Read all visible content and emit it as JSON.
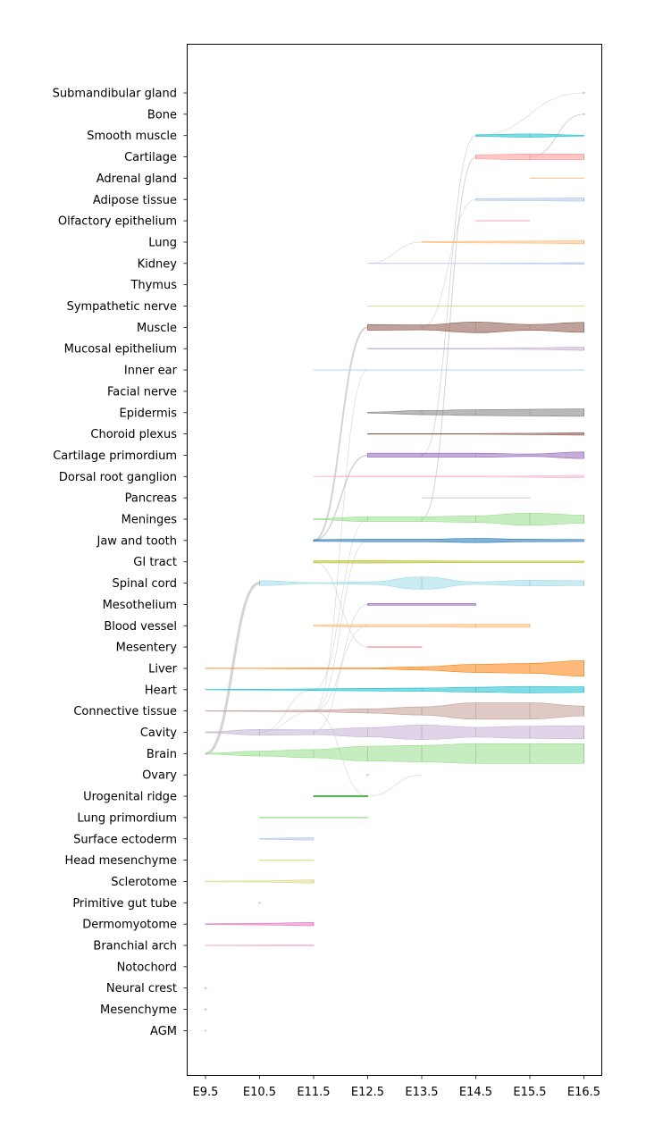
{
  "chart_data": {
    "type": "area",
    "x": [
      "E9.5",
      "E10.5",
      "E11.5",
      "E12.5",
      "E13.5",
      "E14.5",
      "E15.5",
      "E16.5"
    ],
    "categories": [
      "Submandibular gland",
      "Bone",
      "Smooth muscle",
      "Cartilage",
      "Adrenal gland",
      "Adipose tissue",
      "Olfactory epithelium",
      "Lung",
      "Kidney",
      "Thymus",
      "Sympathetic nerve",
      "Muscle",
      "Mucosal epithelium",
      "Inner ear",
      "Facial nerve",
      "Epidermis",
      "Choroid plexus",
      "Cartilage primordium",
      "Dorsal root ganglion",
      "Pancreas",
      "Meninges",
      "Jaw and tooth",
      "GI tract",
      "Spinal cord",
      "Mesothelium",
      "Blood vessel",
      "Mesentery",
      "Liver",
      "Heart",
      "Connective tissue",
      "Cavity",
      "Brain",
      "Ovary",
      "Urogenital ridge",
      "Lung primordium",
      "Surface ectoderm",
      "Head mesenchyme",
      "Sclerotome",
      "Primitive gut tube",
      "Dermomyotome",
      "Branchial arch",
      "Notochord",
      "Neural crest",
      "Mesenchyme",
      "AGM"
    ],
    "series": [
      {
        "category": "Submandibular gland",
        "color": "#c7c7c7",
        "values": [
          0,
          0,
          0,
          0,
          0,
          0,
          0,
          0.02
        ]
      },
      {
        "category": "Bone",
        "color": "#c7c7c7",
        "values": [
          0,
          0,
          0,
          0,
          0,
          0,
          0,
          0.02
        ]
      },
      {
        "category": "Smooth muscle",
        "color": "#17becf",
        "values": [
          0,
          0,
          0,
          0,
          0,
          0.1,
          0.2,
          0.05
        ]
      },
      {
        "category": "Cartilage",
        "color": "#ff9896",
        "values": [
          0,
          0,
          0,
          0,
          0,
          0.25,
          0.35,
          0.35
        ]
      },
      {
        "category": "Adrenal gland",
        "color": "#ffbb78",
        "values": [
          0,
          0,
          0,
          0,
          0,
          0,
          0.02,
          0.02
        ]
      },
      {
        "category": "Adipose tissue",
        "color": "#aec7e8",
        "values": [
          0,
          0,
          0,
          0,
          0,
          0.1,
          0.15,
          0.2
        ]
      },
      {
        "category": "Olfactory epithelium",
        "color": "#f7b6d2",
        "values": [
          0,
          0,
          0,
          0,
          0,
          0.04,
          0.04,
          0
        ]
      },
      {
        "category": "Lung",
        "color": "#ffbb78",
        "values": [
          0,
          0,
          0,
          0,
          0.06,
          0.1,
          0.12,
          0.2
        ]
      },
      {
        "category": "Kidney",
        "color": "#aec7e8",
        "values": [
          0,
          0,
          0,
          0.02,
          0.02,
          0.02,
          0.05,
          0.1
        ]
      },
      {
        "category": "Thymus",
        "color": "#c7c7c7",
        "values": [
          0,
          0,
          0,
          0,
          0,
          0,
          0,
          0
        ]
      },
      {
        "category": "Sympathetic nerve",
        "color": "#dbdb8d",
        "values": [
          0,
          0,
          0,
          0.04,
          0.04,
          0.04,
          0.04,
          0.04
        ]
      },
      {
        "category": "Muscle",
        "color": "#8c564b",
        "values": [
          0,
          0,
          0,
          0.35,
          0.3,
          0.65,
          0.35,
          0.6
        ]
      },
      {
        "category": "Mucosal epithelium",
        "color": "#c5b0d5",
        "values": [
          0,
          0,
          0,
          0.05,
          0.05,
          0.05,
          0.1,
          0.2
        ]
      },
      {
        "category": "Inner ear",
        "color": "#9edae5",
        "values": [
          0,
          0,
          0.02,
          0.02,
          0.02,
          0.02,
          0.02,
          0.02
        ]
      },
      {
        "category": "Facial nerve",
        "color": "#c7c7c7",
        "values": [
          0,
          0,
          0,
          0,
          0,
          0,
          0,
          0
        ]
      },
      {
        "category": "Epidermis",
        "color": "#7f7f7f",
        "values": [
          0,
          0,
          0,
          0.05,
          0.25,
          0.35,
          0.4,
          0.45
        ]
      },
      {
        "category": "Choroid plexus",
        "color": "#8c564b",
        "values": [
          0,
          0,
          0,
          0.03,
          0.03,
          0.03,
          0.08,
          0.15
        ]
      },
      {
        "category": "Cartilage primordium",
        "color": "#9467bd",
        "values": [
          0,
          0,
          0,
          0.25,
          0.25,
          0.25,
          0.15,
          0.4
        ]
      },
      {
        "category": "Dorsal root ganglion",
        "color": "#f7b6d2",
        "values": [
          0,
          0,
          0.02,
          0.05,
          0.05,
          0.05,
          0.1,
          0.15
        ]
      },
      {
        "category": "Pancreas",
        "color": "#c7c7c7",
        "values": [
          0,
          0,
          0,
          0,
          0.02,
          0.02,
          0.02,
          0
        ]
      },
      {
        "category": "Meninges",
        "color": "#98df8a",
        "values": [
          0,
          0,
          0.05,
          0.3,
          0.3,
          0.4,
          0.75,
          0.5
        ]
      },
      {
        "category": "Jaw and tooth",
        "color": "#1f77b4",
        "values": [
          0,
          0,
          0.1,
          0.15,
          0.15,
          0.25,
          0.15,
          0.12
        ]
      },
      {
        "category": "GI tract",
        "color": "#bcbd22",
        "values": [
          0,
          0,
          0.12,
          0.15,
          0.12,
          0.08,
          0.08,
          0.08
        ]
      },
      {
        "category": "Spinal cord",
        "color": "#9edae5",
        "values": [
          0,
          0.3,
          0.05,
          0.15,
          0.75,
          0.15,
          0.35,
          0.3
        ]
      },
      {
        "category": "Mesothelium",
        "color": "#9467bd",
        "values": [
          0,
          0,
          0,
          0.12,
          0.12,
          0.12,
          0,
          0
        ]
      },
      {
        "category": "Blood vessel",
        "color": "#ffbb78",
        "values": [
          0,
          0,
          0.08,
          0.15,
          0.15,
          0.2,
          0.2,
          0
        ]
      },
      {
        "category": "Mesentery",
        "color": "#ff9896",
        "values": [
          0,
          0,
          0,
          0.05,
          0.05,
          0,
          0,
          0
        ]
      },
      {
        "category": "Liver",
        "color": "#ff7f0e",
        "values": [
          0.02,
          0.02,
          0.05,
          0.05,
          0.2,
          0.5,
          0.6,
          0.95
        ]
      },
      {
        "category": "Heart",
        "color": "#17becf",
        "values": [
          0.02,
          0.05,
          0.1,
          0.15,
          0.2,
          0.3,
          0.4,
          0.35
        ]
      },
      {
        "category": "Connective tissue",
        "color": "#c49c94",
        "values": [
          0.02,
          0.04,
          0.1,
          0.25,
          0.5,
          1.0,
          1.0,
          0.6
        ]
      },
      {
        "category": "Cavity",
        "color": "#c5b0d5",
        "values": [
          0.05,
          0.35,
          0.3,
          0.55,
          0.9,
          0.6,
          0.75,
          0.8
        ]
      },
      {
        "category": "Brain",
        "color": "#98df8a",
        "values": [
          0.05,
          0.3,
          0.5,
          0.9,
          1.0,
          1.2,
          1.2,
          1.2
        ]
      },
      {
        "category": "Ovary",
        "color": "#c7c7c7",
        "values": [
          0,
          0,
          0,
          0.02,
          0,
          0,
          0,
          0
        ]
      },
      {
        "category": "Urogenital ridge",
        "color": "#2ca02c",
        "values": [
          0,
          0,
          0.08,
          0.08,
          0,
          0,
          0,
          0
        ]
      },
      {
        "category": "Lung primordium",
        "color": "#98df8a",
        "values": [
          0,
          0.04,
          0.04,
          0.04,
          0,
          0,
          0,
          0
        ]
      },
      {
        "category": "Surface ectoderm",
        "color": "#aec7e8",
        "values": [
          0,
          0.05,
          0.15,
          0,
          0,
          0,
          0,
          0
        ]
      },
      {
        "category": "Head mesenchyme",
        "color": "#dbdb8d",
        "values": [
          0,
          0.05,
          0.05,
          0,
          0,
          0,
          0,
          0
        ]
      },
      {
        "category": "Sclerotome",
        "color": "#dbdb8d",
        "values": [
          0.04,
          0.08,
          0.2,
          0,
          0,
          0,
          0,
          0
        ]
      },
      {
        "category": "Primitive gut tube",
        "color": "#c7c7c7",
        "values": [
          0,
          0.02,
          0,
          0,
          0,
          0,
          0,
          0
        ]
      },
      {
        "category": "Dermomyotome",
        "color": "#e377c2",
        "values": [
          0.04,
          0.1,
          0.2,
          0,
          0,
          0,
          0,
          0
        ]
      },
      {
        "category": "Branchial arch",
        "color": "#f7b6d2",
        "values": [
          0.04,
          0.06,
          0.08,
          0,
          0,
          0,
          0,
          0
        ]
      },
      {
        "category": "Notochord",
        "color": "#c7c7c7",
        "values": [
          0,
          0,
          0,
          0,
          0,
          0,
          0,
          0
        ]
      },
      {
        "category": "Neural crest",
        "color": "#98df8a",
        "values": [
          0.02,
          0,
          0,
          0,
          0,
          0,
          0,
          0
        ]
      },
      {
        "category": "Mesenchyme",
        "color": "#aec7e8",
        "values": [
          0.02,
          0,
          0,
          0,
          0,
          0,
          0,
          0
        ]
      },
      {
        "category": "AGM",
        "color": "#c7c7c7",
        "values": [
          0.02,
          0,
          0,
          0,
          0,
          0,
          0,
          0
        ]
      }
    ],
    "flows": [
      {
        "from": "Brain",
        "to": "Spinal cord",
        "x0": "E9.5",
        "x1": "E10.5",
        "value": 0.3
      },
      {
        "from": "Cavity",
        "to": "Heart",
        "x0": "E10.5",
        "x1": "E11.5",
        "value": 0.05
      },
      {
        "from": "Cavity",
        "to": "Connective tissue",
        "x0": "E10.5",
        "x1": "E11.5",
        "value": 0.05
      },
      {
        "from": "Connective tissue",
        "to": "Inner ear",
        "x0": "E11.5",
        "x1": "E12.5",
        "value": 0.02
      },
      {
        "from": "Connective tissue",
        "to": "Jaw and tooth",
        "x0": "E11.5",
        "x1": "E12.5",
        "value": 0.05
      },
      {
        "from": "Connective tissue",
        "to": "Urogenital ridge",
        "x0": "E11.5",
        "x1": "E12.5",
        "value": 0.04
      },
      {
        "from": "Connective tissue",
        "to": "Blood vessel",
        "x0": "E11.5",
        "x1": "E12.5",
        "value": 0.05
      },
      {
        "from": "GI tract",
        "to": "Mesentery",
        "x0": "E11.5",
        "x1": "E12.5",
        "value": 0.05
      },
      {
        "from": "Heart",
        "to": "Meninges",
        "x0": "E11.5",
        "x1": "E12.5",
        "value": 0.05
      },
      {
        "from": "Jaw and tooth",
        "to": "Muscle",
        "x0": "E11.5",
        "x1": "E12.5",
        "value": 0.2
      },
      {
        "from": "Jaw and tooth",
        "to": "Cartilage primordium",
        "x0": "E11.5",
        "x1": "E12.5",
        "value": 0.15
      },
      {
        "from": "Cavity",
        "to": "Mesothelium",
        "x0": "E11.5",
        "x1": "E12.5",
        "value": 0.05
      },
      {
        "from": "Urogenital ridge",
        "to": "Ovary",
        "x0": "E12.5",
        "x1": "E13.5",
        "value": 0.02
      },
      {
        "from": "Kidney",
        "to": "Lung",
        "x0": "E12.5",
        "x1": "E13.5",
        "value": 0.02
      },
      {
        "from": "Meninges",
        "to": "Cartilage",
        "x0": "E13.5",
        "x1": "E14.5",
        "value": 0.1
      },
      {
        "from": "Cartilage primordium",
        "to": "Smooth muscle",
        "x0": "E13.5",
        "x1": "E14.5",
        "value": 0.08
      },
      {
        "from": "Muscle",
        "to": "Adipose tissue",
        "x0": "E13.5",
        "x1": "E14.5",
        "value": 0.05
      },
      {
        "from": "Cartilage",
        "to": "Bone",
        "x0": "E15.5",
        "x1": "E16.5",
        "value": 0.1
      },
      {
        "from": "Smooth muscle",
        "to": "Submandibular gland",
        "x0": "E14.5",
        "x1": "E16.5",
        "value": 0.05
      }
    ],
    "title": "",
    "xlabel": "",
    "ylabel": "",
    "grid": false,
    "legend": "none"
  }
}
